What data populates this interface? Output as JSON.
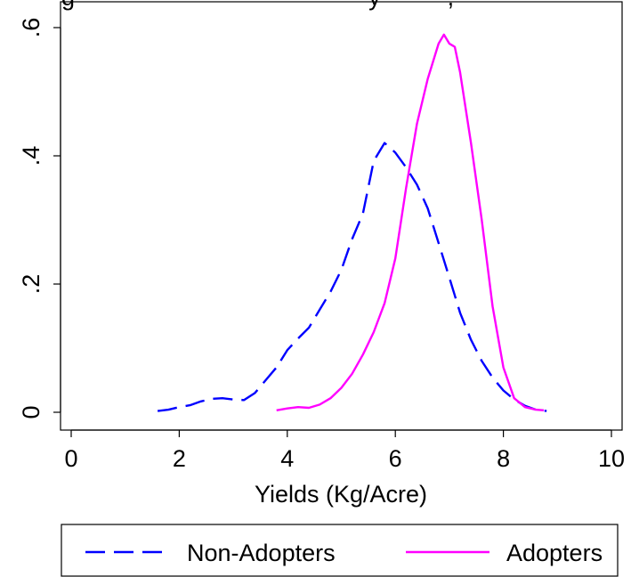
{
  "chart_data": {
    "type": "line",
    "title": "g                                            y          ,",
    "xlabel": "Yields (Kg/Acre)",
    "ylabel": "",
    "xlim": [
      0,
      10
    ],
    "ylim": [
      0,
      0.6
    ],
    "x_ticks": [
      0,
      2,
      4,
      6,
      8,
      10
    ],
    "x_tick_labels": [
      "0",
      "2",
      "4",
      "6",
      "8",
      "10"
    ],
    "y_ticks": [
      0,
      0.2,
      0.4,
      0.6
    ],
    "y_tick_labels": [
      "0",
      ".2",
      ".4",
      ".6"
    ],
    "grid": false,
    "legend_position": "bottom",
    "series": [
      {
        "name": "Non-Adopters",
        "color": "#0000ff",
        "dash": "dashed",
        "x": [
          1.6,
          1.8,
          2.0,
          2.2,
          2.4,
          2.6,
          2.8,
          3.0,
          3.2,
          3.4,
          3.6,
          3.8,
          4.0,
          4.2,
          4.4,
          4.6,
          4.8,
          5.0,
          5.2,
          5.4,
          5.6,
          5.8,
          6.0,
          6.2,
          6.4,
          6.6,
          6.8,
          7.0,
          7.2,
          7.4,
          7.6,
          7.8,
          8.0,
          8.2,
          8.4,
          8.6,
          8.8
        ],
        "y": [
          0.002,
          0.004,
          0.008,
          0.011,
          0.017,
          0.021,
          0.022,
          0.02,
          0.019,
          0.03,
          0.05,
          0.07,
          0.097,
          0.115,
          0.132,
          0.16,
          0.188,
          0.222,
          0.27,
          0.31,
          0.392,
          0.42,
          0.405,
          0.382,
          0.355,
          0.318,
          0.264,
          0.21,
          0.155,
          0.113,
          0.08,
          0.054,
          0.034,
          0.02,
          0.01,
          0.004,
          0.002
        ]
      },
      {
        "name": "Adopters",
        "color": "#ff00ff",
        "dash": "solid",
        "x": [
          3.8,
          4.0,
          4.2,
          4.4,
          4.6,
          4.8,
          5.0,
          5.2,
          5.4,
          5.6,
          5.8,
          6.0,
          6.2,
          6.4,
          6.6,
          6.8,
          6.9,
          7.0,
          7.1,
          7.2,
          7.4,
          7.6,
          7.8,
          8.0,
          8.2,
          8.4,
          8.6,
          8.75
        ],
        "y": [
          0.003,
          0.006,
          0.008,
          0.007,
          0.012,
          0.022,
          0.038,
          0.06,
          0.09,
          0.125,
          0.17,
          0.24,
          0.35,
          0.45,
          0.52,
          0.575,
          0.589,
          0.575,
          0.57,
          0.53,
          0.42,
          0.3,
          0.165,
          0.07,
          0.022,
          0.008,
          0.004,
          0.003
        ]
      }
    ]
  }
}
